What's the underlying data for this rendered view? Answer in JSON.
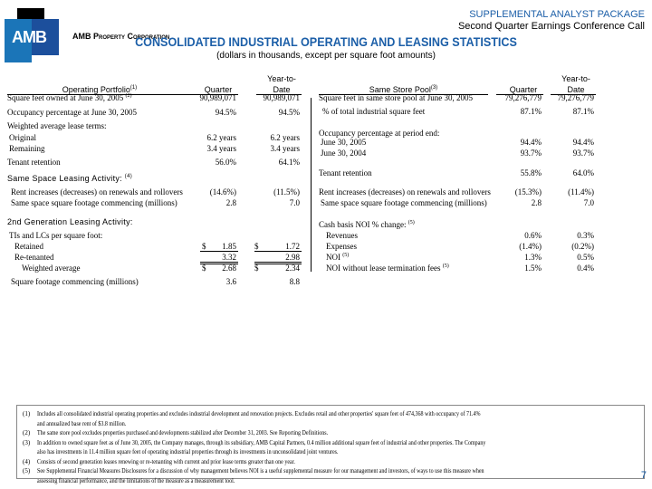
{
  "header": {
    "logo_text": "AMB",
    "company": "AMB Property Corporation",
    "package": "SUPPLEMENTAL ANALYST PACKAGE",
    "call": "Second Quarter Earnings Conference Call",
    "title": "CONSOLIDATED INDUSTRIAL OPERATING AND LEASING STATISTICS",
    "subtitle": "(dollars in thousands, except per square foot amounts)"
  },
  "left": {
    "title": "Operating Portfolio",
    "title_note": "(1)",
    "col_quarter": "Quarter",
    "col_ytd_1": "Year-to-",
    "col_ytd_2": "Date",
    "rows": [
      {
        "label": "Square feet owned at June 30, 2005",
        "note": "(2)",
        "q": "90,989,071",
        "y": "90,989,071"
      },
      {
        "label": "Occupancy percentage at June 30, 2005",
        "q": "94.5%",
        "y": "94.5%"
      },
      {
        "label": "Weighted average lease terms:"
      },
      {
        "label": "Original",
        "q": "6.2 years",
        "y": "6.2 years"
      },
      {
        "label": "Remaining",
        "q": "3.4 years",
        "y": "3.4 years"
      },
      {
        "label": "Tenant retention",
        "q": "56.0%",
        "y": "64.1%"
      },
      {
        "label": "Same Space Leasing Activity:",
        "note": "(4)"
      },
      {
        "label": "Rent increases (decreases) on renewals and rollovers",
        "q": "(14.6%)",
        "y": "(11.5%)"
      },
      {
        "label": "Same space square footage commencing (millions)",
        "q": "2.8",
        "y": "7.0"
      },
      {
        "label": "2nd Generation Leasing Activity:"
      },
      {
        "label": "TIs and LCs per square foot:"
      },
      {
        "label": "Retained",
        "cur": "$",
        "q": "1.85",
        "y": "1.72"
      },
      {
        "label": "Re-tenanted",
        "q": "3.32",
        "y": "2.98"
      },
      {
        "label": "Weighted average",
        "cur": "$",
        "q": "2.68",
        "y": "2.34"
      },
      {
        "label": "Square footage commencing (millions)",
        "q": "3.6",
        "y": "8.8"
      }
    ]
  },
  "right": {
    "title": "Same Store Pool",
    "title_note": "(3)",
    "col_quarter": "Quarter",
    "col_ytd_1": "Year-to-",
    "col_ytd_2": "Date",
    "rows": [
      {
        "label": "Square feet in same store pool at June 30, 2005",
        "q": "79,276,779",
        "y": "79,276,779"
      },
      {
        "label": "% of total industrial square feet",
        "q": "87.1%",
        "y": "87.1%"
      },
      {
        "label": "Occupancy percentage at period end:"
      },
      {
        "label": "June 30, 2005",
        "q": "94.4%",
        "y": "94.4%"
      },
      {
        "label": "June 30, 2004",
        "q": "93.7%",
        "y": "93.7%"
      },
      {
        "label": "Tenant retention",
        "q": "55.8%",
        "y": "64.0%"
      },
      {
        "label": "Rent increases (decreases) on renewals and rollovers",
        "q": "(15.3%)",
        "y": "(11.4%)"
      },
      {
        "label": "Same space square footage commencing (millions)",
        "q": "2.8",
        "y": "7.0"
      },
      {
        "label": "Cash basis NOI % change:",
        "note": "(5)"
      },
      {
        "label": "Revenues",
        "q": "0.6%",
        "y": "0.3%"
      },
      {
        "label": "Expenses",
        "q": "(1.4%)",
        "y": "(0.2%)"
      },
      {
        "label": "NOI",
        "note": "(5)",
        "q": "1.3%",
        "y": "0.5%"
      },
      {
        "label": "NOI without lease termination fees",
        "note": "(5)",
        "q": "1.5%",
        "y": "0.4%"
      }
    ]
  },
  "footnotes": [
    {
      "n": "(1)",
      "l1": "Includes all consolidated industrial operating properties and excludes industrial development and renovation projects. Excludes retail and other properties' square feet of 474,368 with occupancy of 71.4%",
      "l2": "and annualized base rent of $3.8 million."
    },
    {
      "n": "(2)",
      "l1": "The same store pool excludes properties purchased and developments stabilized after December 31, 2003. See Reporting Definitions."
    },
    {
      "n": "(3)",
      "l1": "In addition to owned square feet as of June 30, 2005, the Company manages, through its subsidiary, AMB Capital Partners, 0.4 million additional square feet of industrial and other properties. The Company",
      "l2": "also has investments in 11.4 million square feet of operating industrial properties through its investments in unconsolidated joint ventures."
    },
    {
      "n": "(4)",
      "l1": "Consists of second generation leases renewing or re-tenanting with current and prior lease terms greater than one year."
    },
    {
      "n": "(5)",
      "l1": "See Supplemental Financial Measures Disclosures for a discussion of why management believes NOI is a useful supplemental measure for our management and investors, of ways to use this measure when",
      "l2": "assessing financial performance, and the limitations of the measure as a measurement tool."
    }
  ],
  "page_number": "7"
}
